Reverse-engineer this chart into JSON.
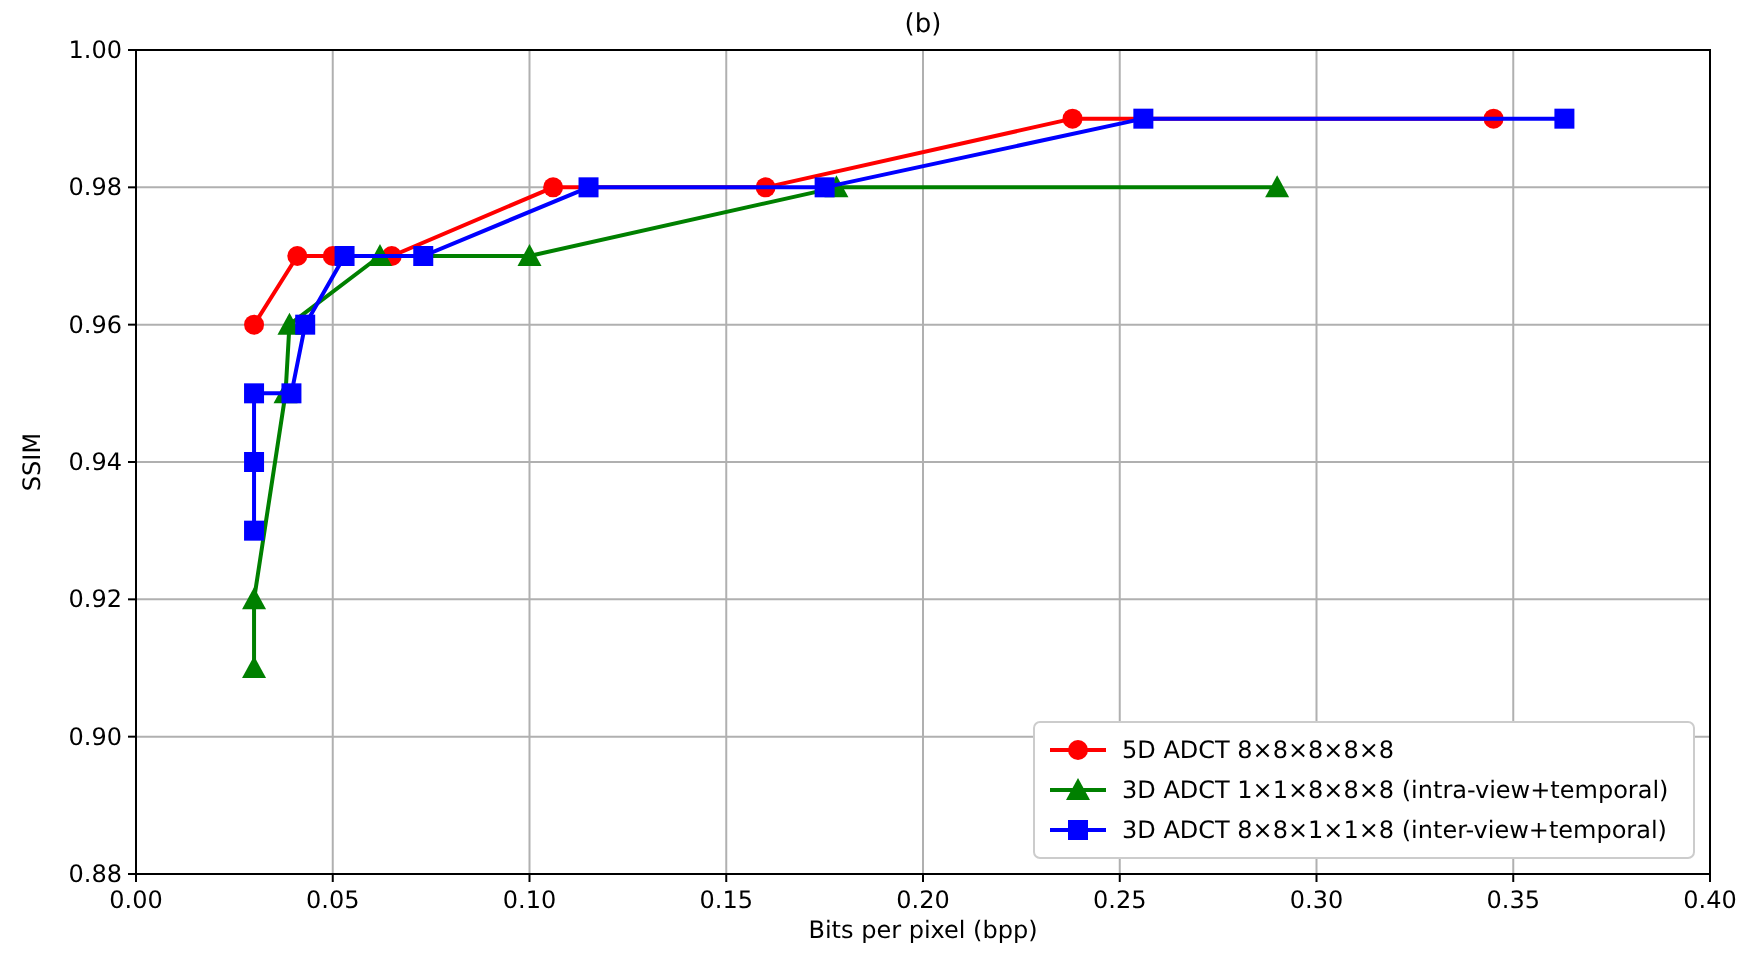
{
  "chart_data": {
    "type": "line",
    "title": "(b)",
    "xlabel": "Bits per pixel (bpp)",
    "ylabel": "SSIM",
    "xlim": [
      0,
      0.4
    ],
    "xticks": [
      {
        "value": 0,
        "label": "0.00"
      },
      0.05,
      {
        "value": 0.1,
        "label": "0.10"
      },
      0.15,
      {
        "value": 0.2,
        "label": "0.20"
      },
      0.25,
      {
        "value": 0.3,
        "label": "0.30"
      },
      0.35,
      {
        "value": 0.4,
        "label": "0.40"
      }
    ],
    "ylim": [
      0.88,
      1.0
    ],
    "yticks": [
      0.88,
      {
        "value": 0.9,
        "label": "0.90"
      },
      0.92,
      0.94,
      0.96,
      0.98,
      {
        "value": 1.0,
        "label": "1.00"
      }
    ],
    "grid": true,
    "legend": "bottom right",
    "series": [
      {
        "name": "5D ADCT 8×8×8×8×8",
        "color": "#ff0000",
        "marker": "circle",
        "x": [
          0.03,
          0.041,
          0.05,
          0.065,
          0.106,
          0.16,
          0.238,
          0.345
        ],
        "values": [
          0.96,
          0.97,
          0.97,
          0.97,
          0.98,
          0.98,
          0.99,
          0.99
        ]
      },
      {
        "name": "3D ADCT 1×1×8×8×8 (intra-view+temporal)",
        "color": "#008000",
        "marker": "triangle",
        "x": [
          0.03,
          0.03,
          0.038,
          0.039,
          0.062,
          0.1,
          0.178,
          0.29
        ],
        "values": [
          0.91,
          0.92,
          0.95,
          0.96,
          0.97,
          0.97,
          0.98,
          0.98
        ]
      },
      {
        "name": "3D ADCT 8×8×1×1×8 (inter-view+temporal)",
        "color": "#0000ff",
        "marker": "square",
        "x": [
          0.03,
          0.03,
          0.03,
          0.0395,
          0.043,
          0.053,
          0.073,
          0.115,
          0.175,
          0.256,
          0.363
        ],
        "values": [
          0.93,
          0.94,
          0.95,
          0.95,
          0.96,
          0.97,
          0.97,
          0.98,
          0.98,
          0.99,
          0.99
        ]
      }
    ]
  }
}
